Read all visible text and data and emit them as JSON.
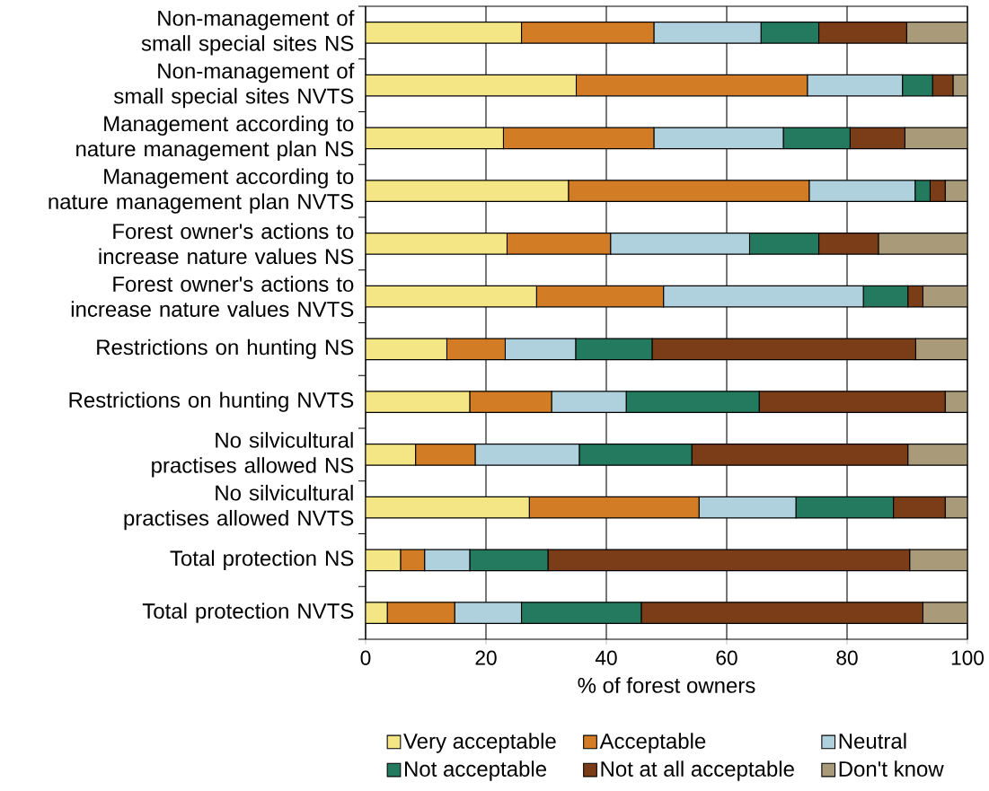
{
  "chart_data": {
    "type": "bar",
    "orientation": "horizontal",
    "stacked": true,
    "categories": [
      "Non-management of small special sites NS",
      "Non-management of small special sites NVTS",
      "Management according to nature management plan NS",
      "Management according to nature management plan NVTS",
      "Forest owner's actions to increase nature values NS",
      "Forest owner's actions to increase nature values NVTS",
      "Restrictions on hunting NS",
      "Restrictions on hunting NVTS",
      "No silvicultural practises allowed NS",
      "No silvicultural practises allowed NVTS",
      "Total protection NS",
      "Total protection NVTS"
    ],
    "xlabel": "% of forest owners",
    "xlim": [
      0,
      100
    ],
    "xticks": [
      0,
      20,
      40,
      60,
      80,
      100
    ],
    "grid": "x",
    "legend": "bottom",
    "series": [
      {
        "name": "Very acceptable",
        "color": "#f5e685",
        "values": [
          25.9,
          35.0,
          22.9,
          33.7,
          23.5,
          28.4,
          13.5,
          17.3,
          8.3,
          27.2,
          5.8,
          3.6
        ]
      },
      {
        "name": "Acceptable",
        "color": "#d37c26",
        "values": [
          22.0,
          38.4,
          25.0,
          40.0,
          17.2,
          21.1,
          9.7,
          13.6,
          9.9,
          28.2,
          4.0,
          11.2
        ]
      },
      {
        "name": "Neutral",
        "color": "#aed1dd",
        "values": [
          17.8,
          15.8,
          21.5,
          17.6,
          23.1,
          33.2,
          11.7,
          12.4,
          17.3,
          16.1,
          7.5,
          11.1
        ]
      },
      {
        "name": "Not acceptable",
        "color": "#237a5e",
        "values": [
          9.6,
          5.0,
          11.1,
          2.5,
          11.5,
          7.4,
          12.7,
          22.1,
          18.7,
          16.2,
          13.0,
          19.9
        ]
      },
      {
        "name": "Not at all acceptable",
        "color": "#7b3d18",
        "values": [
          14.6,
          3.4,
          9.1,
          2.5,
          9.9,
          2.5,
          43.8,
          30.9,
          35.9,
          8.6,
          60.1,
          46.8
        ]
      },
      {
        "name": "Don't know",
        "color": "#a99a7a",
        "values": [
          10.1,
          2.4,
          10.4,
          3.7,
          14.8,
          7.4,
          8.6,
          3.7,
          9.9,
          3.7,
          9.6,
          7.4
        ]
      }
    ]
  }
}
